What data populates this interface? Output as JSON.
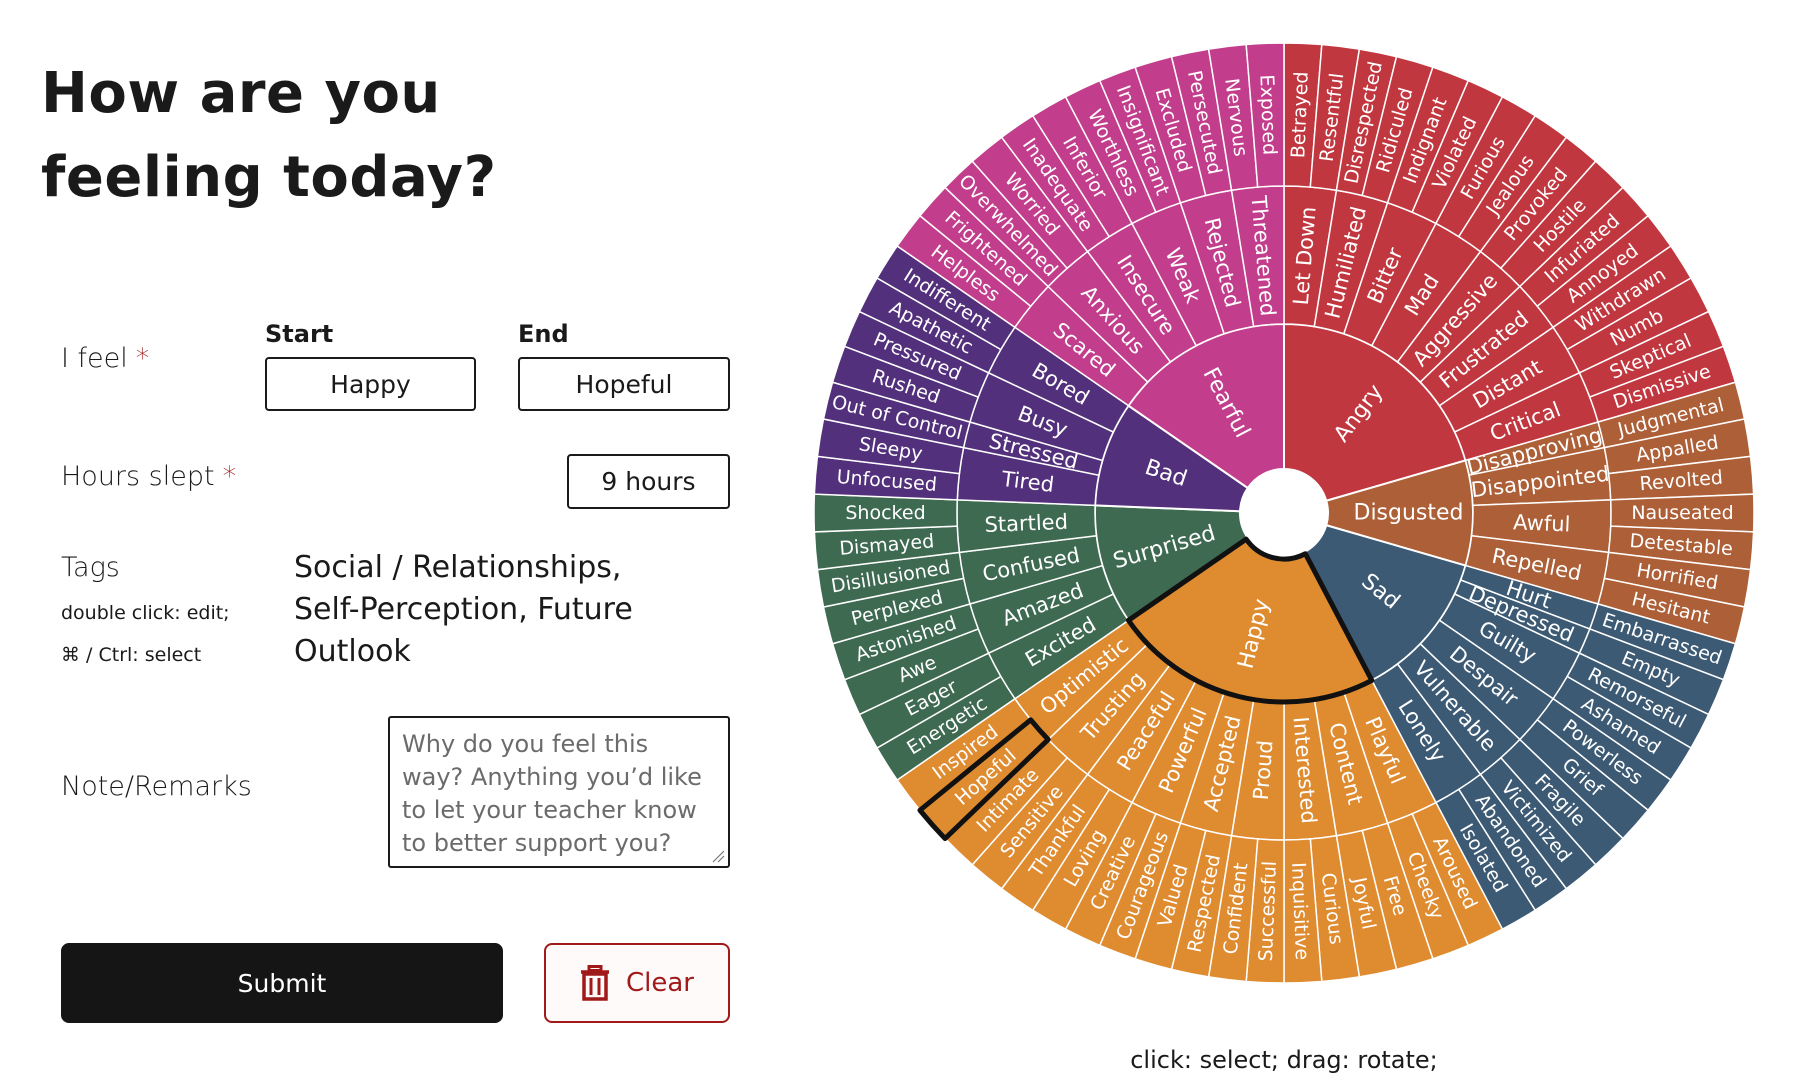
{
  "title": "How are you feeling today?",
  "form": {
    "feel_label": "I feel",
    "required": "*",
    "start_label": "Start",
    "start_value": "Happy",
    "end_label": "End",
    "end_value": "Hopeful",
    "hours_label": "Hours slept",
    "hours_value": "9 hours",
    "tags_label": "Tags",
    "tags_hint_1": "double click: edit;",
    "tags_hint_2": "⌘ / Ctrl: select",
    "tags_value": "Social / Relationships, Self-Perception, Future Outlook",
    "note_label": "Note/Remarks",
    "note_placeholder": "Why do you feel this way? Anything you’d like to let your teacher know to better support you?",
    "submit": "Submit",
    "clear": "Clear"
  },
  "wheel": {
    "hint": "click: select; drag: rotate;",
    "emotions": [
      {
        "name": "Angry",
        "color": "#c1373f",
        "children": [
          {
            "name": "Let Down",
            "children": [
              "Betrayed",
              "Resentful"
            ]
          },
          {
            "name": "Humiliated",
            "children": [
              "Disrespected",
              "Ridiculed"
            ]
          },
          {
            "name": "Bitter",
            "children": [
              "Indignant",
              "Violated"
            ]
          },
          {
            "name": "Mad",
            "children": [
              "Furious",
              "Jealous"
            ]
          },
          {
            "name": "Aggressive",
            "children": [
              "Provoked",
              "Hostile"
            ]
          },
          {
            "name": "Frustrated",
            "children": [
              "Infuriated",
              "Annoyed"
            ]
          },
          {
            "name": "Distant",
            "children": [
              "Withdrawn",
              "Numb"
            ]
          },
          {
            "name": "Critical",
            "children": [
              "Skeptical",
              "Dismissive"
            ]
          }
        ]
      },
      {
        "name": "Disgusted",
        "color": "#ad5f37",
        "children": [
          {
            "name": "Disapproving",
            "children": [
              "Judgmental"
            ]
          },
          {
            "name": "Disappointed",
            "children": [
              "Appalled",
              "Revolted"
            ]
          },
          {
            "name": "Awful",
            "children": [
              "Nauseated",
              "Detestable"
            ]
          },
          {
            "name": "Repelled",
            "children": [
              "Horrified",
              "Hesitant"
            ]
          }
        ]
      },
      {
        "name": "Sad",
        "color": "#3c5a74",
        "children": [
          {
            "name": "Hurt",
            "children": [
              "Embarrassed"
            ]
          },
          {
            "name": "Depressed",
            "children": [
              "Empty"
            ]
          },
          {
            "name": "Guilty",
            "children": [
              "Remorseful",
              "Ashamed"
            ]
          },
          {
            "name": "Despair",
            "children": [
              "Powerless",
              "Grief"
            ]
          },
          {
            "name": "Vulnerable",
            "children": [
              "Fragile",
              "Victimized"
            ]
          },
          {
            "name": "Lonely",
            "children": [
              "Abandoned",
              "Isolated"
            ]
          }
        ]
      },
      {
        "name": "Happy",
        "color": "#df8b30",
        "children": [
          {
            "name": "Playful",
            "children": [
              "Aroused",
              "Cheeky"
            ]
          },
          {
            "name": "Content",
            "children": [
              "Free",
              "Joyful"
            ]
          },
          {
            "name": "Interested",
            "children": [
              "Curious",
              "Inquisitive"
            ]
          },
          {
            "name": "Proud",
            "children": [
              "Successful",
              "Confident"
            ]
          },
          {
            "name": "Accepted",
            "children": [
              "Respected",
              "Valued"
            ]
          },
          {
            "name": "Powerful",
            "children": [
              "Courageous",
              "Creative"
            ]
          },
          {
            "name": "Peaceful",
            "children": [
              "Loving",
              "Thankful"
            ]
          },
          {
            "name": "Trusting",
            "children": [
              "Sensitive",
              "Intimate"
            ]
          },
          {
            "name": "Optimistic",
            "children": [
              "Hopeful",
              "Inspired"
            ]
          }
        ]
      },
      {
        "name": "Surprised",
        "color": "#3e6a51",
        "children": [
          {
            "name": "Excited",
            "children": [
              "Energetic",
              "Eager"
            ]
          },
          {
            "name": "Amazed",
            "children": [
              "Awe",
              "Astonished"
            ]
          },
          {
            "name": "Confused",
            "children": [
              "Perplexed",
              "Disillusioned"
            ]
          },
          {
            "name": "Startled",
            "children": [
              "Dismayed",
              "Shocked"
            ]
          }
        ]
      },
      {
        "name": "Bad",
        "color": "#53307b",
        "children": [
          {
            "name": "Tired",
            "children": [
              "Unfocused",
              "Sleepy"
            ]
          },
          {
            "name": "Stressed",
            "children": [
              "Out of Control"
            ]
          },
          {
            "name": "Busy",
            "children": [
              "Rushed",
              "Pressured"
            ]
          },
          {
            "name": "Bored",
            "children": [
              "Apathetic",
              "Indifferent"
            ]
          }
        ]
      },
      {
        "name": "Fearful",
        "color": "#c23e8c",
        "children": [
          {
            "name": "Scared",
            "children": [
              "Helpless",
              "Frightened"
            ]
          },
          {
            "name": "Anxious",
            "children": [
              "Overwhelmed",
              "Worried"
            ]
          },
          {
            "name": "Insecure",
            "children": [
              "Inadequate",
              "Inferior"
            ]
          },
          {
            "name": "Weak",
            "children": [
              "Worthless",
              "Insignificant"
            ]
          },
          {
            "name": "Rejected",
            "children": [
              "Excluded",
              "Persecuted"
            ]
          },
          {
            "name": "Threatened",
            "children": [
              "Nervous",
              "Exposed"
            ]
          }
        ]
      }
    ]
  }
}
